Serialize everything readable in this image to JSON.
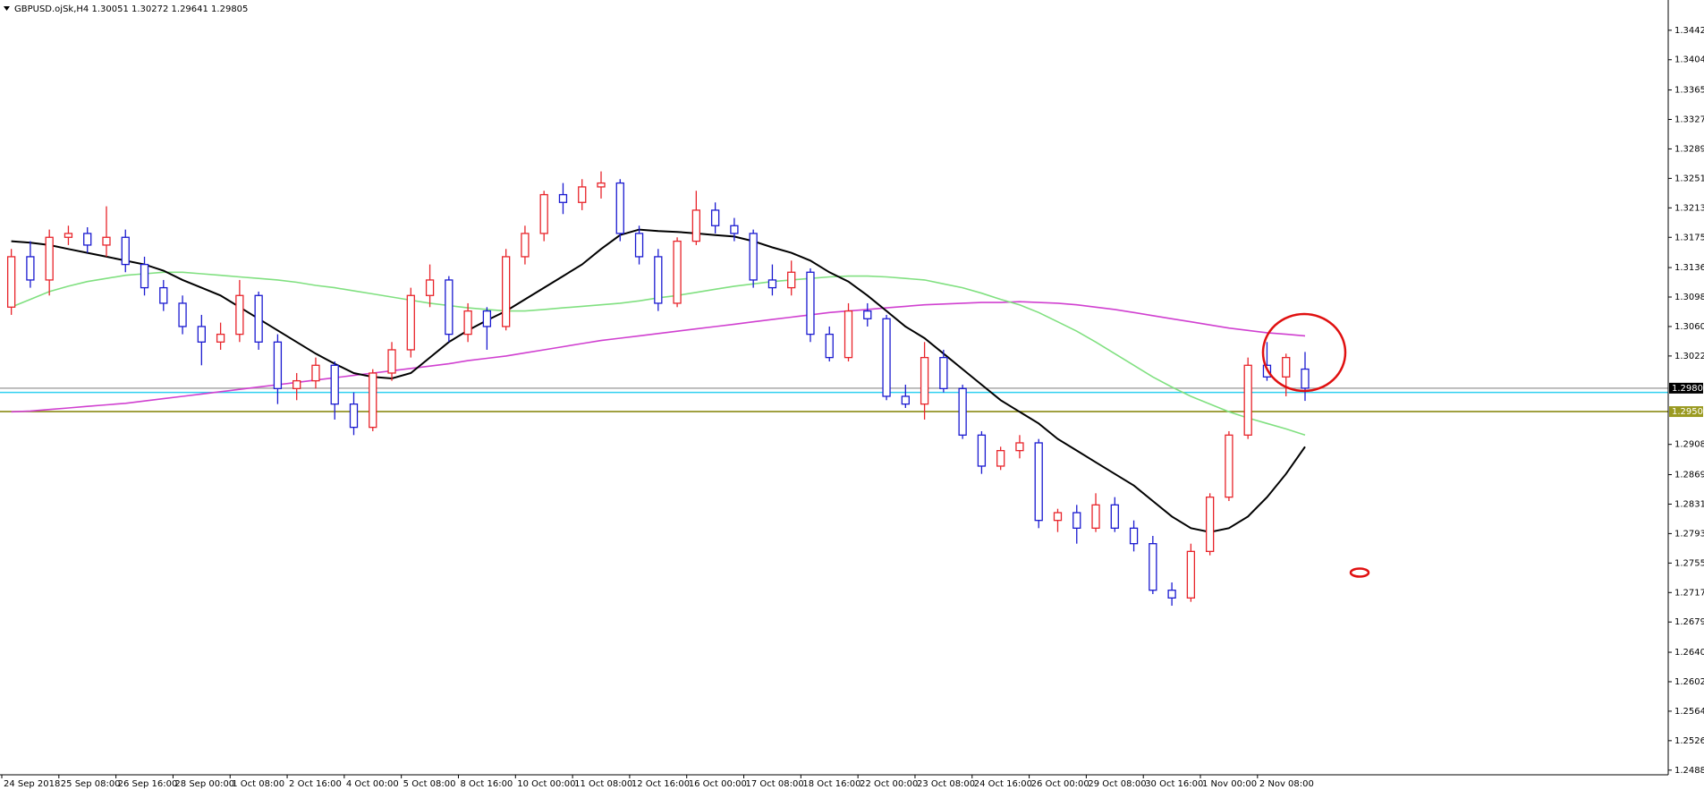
{
  "chart_data": {
    "type": "candlestick",
    "title": "GBPUSD.ojSk,H4  1.30051 1.30272 1.29641 1.29805",
    "up_color": "#e8242a",
    "down_color": "#1a1ad0",
    "ylim": [
      1.2482,
      1.3481
    ],
    "yticks": [
      {
        "value": 1.3442,
        "label": "1.34420"
      },
      {
        "value": 1.3404,
        "label": "1.34040"
      },
      {
        "value": 1.3365,
        "label": "1.33650"
      },
      {
        "value": 1.3327,
        "label": "1.33270"
      },
      {
        "value": 1.3289,
        "label": "1.32890"
      },
      {
        "value": 1.3251,
        "label": "1.32510"
      },
      {
        "value": 1.3213,
        "label": "1.32130"
      },
      {
        "value": 1.3175,
        "label": "1.31750"
      },
      {
        "value": 1.3136,
        "label": "1.31360"
      },
      {
        "value": 1.3098,
        "label": "1.30980"
      },
      {
        "value": 1.306,
        "label": "1.30600"
      },
      {
        "value": 1.3022,
        "label": "1.30220"
      },
      {
        "value": 1.2908,
        "label": "1.29080"
      },
      {
        "value": 1.2869,
        "label": "1.28690"
      },
      {
        "value": 1.2831,
        "label": "1.28310"
      },
      {
        "value": 1.2793,
        "label": "1.27930"
      },
      {
        "value": 1.2755,
        "label": "1.27550"
      },
      {
        "value": 1.2717,
        "label": "1.27170"
      },
      {
        "value": 1.2679,
        "label": "1.26790"
      },
      {
        "value": 1.264,
        "label": "1.26400"
      },
      {
        "value": 1.2602,
        "label": "1.26020"
      },
      {
        "value": 1.2564,
        "label": "1.25640"
      },
      {
        "value": 1.2526,
        "label": "1.25260"
      },
      {
        "value": 1.2488,
        "label": "1.24880"
      }
    ],
    "hlines": [
      {
        "value": 1.29805,
        "color": "#a8a8a8",
        "label_bg": "#000000"
      },
      {
        "value": 1.2975,
        "color": "#30d0f0"
      },
      {
        "value": 1.29503,
        "color": "#808000",
        "label_bg": "#9a9a20"
      }
    ],
    "categories": [
      "24 Sep 2018",
      null,
      null,
      "25 Sep 08:00",
      null,
      null,
      "26 Sep 16:00",
      null,
      null,
      "28 Sep 00:00",
      null,
      null,
      "1 Oct 08:00",
      null,
      null,
      "2 Oct 16:00",
      null,
      null,
      "4 Oct 00:00",
      null,
      null,
      "5 Oct 08:00",
      null,
      null,
      "8 Oct 16:00",
      null,
      null,
      "10 Oct 00:00",
      null,
      null,
      "11 Oct 08:00",
      null,
      null,
      "12 Oct 16:00",
      null,
      null,
      "16 Oct 00:00",
      null,
      null,
      "17 Oct 08:00",
      null,
      null,
      "18 Oct 16:00",
      null,
      null,
      "22 Oct 00:00",
      null,
      null,
      "23 Oct 08:00",
      null,
      null,
      "24 Oct 16:00",
      null,
      null,
      "26 Oct 00:00",
      null,
      null,
      "29 Oct 08:00",
      null,
      null,
      "30 Oct 16:00",
      null,
      null,
      "1 Nov 00:00",
      null,
      null,
      "2 Nov 08:00",
      null,
      null
    ],
    "ohlc": [
      [
        1.3085,
        1.316,
        1.3075,
        1.315
      ],
      [
        1.315,
        1.317,
        1.311,
        1.312
      ],
      [
        1.312,
        1.3185,
        1.31,
        1.3175
      ],
      [
        1.3175,
        1.319,
        1.3165,
        1.318
      ],
      [
        1.318,
        1.3188,
        1.3155,
        1.3165
      ],
      [
        1.3165,
        1.3215,
        1.315,
        1.3175
      ],
      [
        1.3175,
        1.3185,
        1.313,
        1.314
      ],
      [
        1.314,
        1.315,
        1.31,
        1.311
      ],
      [
        1.311,
        1.312,
        1.308,
        1.309
      ],
      [
        1.309,
        1.31,
        1.305,
        1.306
      ],
      [
        1.306,
        1.3075,
        1.301,
        1.304
      ],
      [
        1.304,
        1.3065,
        1.303,
        1.305
      ],
      [
        1.305,
        1.312,
        1.304,
        1.31
      ],
      [
        1.31,
        1.3105,
        1.303,
        1.304
      ],
      [
        1.304,
        1.305,
        1.296,
        1.298
      ],
      [
        1.298,
        1.3,
        1.2965,
        1.299
      ],
      [
        1.299,
        1.302,
        1.298,
        1.301
      ],
      [
        1.301,
        1.3015,
        1.294,
        1.296
      ],
      [
        1.296,
        1.2975,
        1.292,
        1.293
      ],
      [
        1.293,
        1.3005,
        1.2925,
        1.3
      ],
      [
        1.3,
        1.304,
        1.299,
        1.303
      ],
      [
        1.303,
        1.311,
        1.302,
        1.31
      ],
      [
        1.31,
        1.314,
        1.3085,
        1.312
      ],
      [
        1.312,
        1.3125,
        1.304,
        1.305
      ],
      [
        1.305,
        1.309,
        1.304,
        1.308
      ],
      [
        1.308,
        1.3085,
        1.303,
        1.306
      ],
      [
        1.306,
        1.316,
        1.3055,
        1.315
      ],
      [
        1.315,
        1.319,
        1.314,
        1.318
      ],
      [
        1.318,
        1.3235,
        1.317,
        1.323
      ],
      [
        1.323,
        1.3245,
        1.3205,
        1.322
      ],
      [
        1.322,
        1.325,
        1.321,
        1.324
      ],
      [
        1.324,
        1.326,
        1.3225,
        1.3245
      ],
      [
        1.3245,
        1.325,
        1.317,
        1.318
      ],
      [
        1.318,
        1.319,
        1.314,
        1.315
      ],
      [
        1.315,
        1.316,
        1.308,
        1.309
      ],
      [
        1.309,
        1.3175,
        1.3085,
        1.317
      ],
      [
        1.317,
        1.3235,
        1.3165,
        1.321
      ],
      [
        1.321,
        1.322,
        1.318,
        1.319
      ],
      [
        1.319,
        1.32,
        1.317,
        1.318
      ],
      [
        1.318,
        1.3185,
        1.311,
        1.312
      ],
      [
        1.312,
        1.314,
        1.31,
        1.311
      ],
      [
        1.311,
        1.3145,
        1.31,
        1.313
      ],
      [
        1.313,
        1.3135,
        1.304,
        1.305
      ],
      [
        1.305,
        1.306,
        1.3015,
        1.302
      ],
      [
        1.302,
        1.309,
        1.3015,
        1.308
      ],
      [
        1.308,
        1.309,
        1.306,
        1.307
      ],
      [
        1.307,
        1.3075,
        1.2965,
        1.297
      ],
      [
        1.297,
        1.2985,
        1.2955,
        1.296
      ],
      [
        1.296,
        1.304,
        1.294,
        1.302
      ],
      [
        1.302,
        1.303,
        1.2975,
        1.298
      ],
      [
        1.298,
        1.2985,
        1.2915,
        1.292
      ],
      [
        1.292,
        1.2925,
        1.287,
        1.288
      ],
      [
        1.288,
        1.2905,
        1.2875,
        1.29
      ],
      [
        1.29,
        1.292,
        1.289,
        1.291
      ],
      [
        1.291,
        1.2915,
        1.28,
        1.281
      ],
      [
        1.281,
        1.2825,
        1.2795,
        1.282
      ],
      [
        1.282,
        1.283,
        1.278,
        1.28
      ],
      [
        1.28,
        1.2845,
        1.2795,
        1.283
      ],
      [
        1.283,
        1.284,
        1.2795,
        1.28
      ],
      [
        1.28,
        1.281,
        1.277,
        1.278
      ],
      [
        1.278,
        1.279,
        1.2715,
        1.272
      ],
      [
        1.272,
        1.273,
        1.27,
        1.271
      ],
      [
        1.271,
        1.278,
        1.2705,
        1.277
      ],
      [
        1.277,
        1.2845,
        1.2765,
        1.284
      ],
      [
        1.284,
        1.2925,
        1.2835,
        1.292
      ],
      [
        1.292,
        1.302,
        1.2915,
        1.301
      ],
      [
        1.301,
        1.304,
        1.299,
        1.2995
      ],
      [
        1.2995,
        1.3025,
        1.297,
        1.302
      ],
      [
        1.30051,
        1.30272,
        1.29641,
        1.29805
      ]
    ],
    "lines": [
      {
        "color": "#d040d0",
        "values": [
          1.295,
          1.2951,
          1.2953,
          1.2955,
          1.2957,
          1.2959,
          1.2961,
          1.2964,
          1.2967,
          1.297,
          1.2973,
          1.2976,
          1.2979,
          1.2982,
          1.2985,
          1.2988,
          1.2991,
          1.2994,
          1.2997,
          1.3,
          1.3003,
          1.3006,
          1.3009,
          1.3012,
          1.3016,
          1.3019,
          1.3022,
          1.3026,
          1.303,
          1.3034,
          1.3038,
          1.3042,
          1.3045,
          1.3048,
          1.3051,
          1.3054,
          1.3057,
          1.306,
          1.3063,
          1.3066,
          1.3069,
          1.3072,
          1.3075,
          1.3078,
          1.308,
          1.3082,
          1.3084,
          1.3086,
          1.3088,
          1.3089,
          1.309,
          1.3091,
          1.3091,
          1.3092,
          1.3091,
          1.309,
          1.3088,
          1.3085,
          1.3082,
          1.3078,
          1.3074,
          1.307,
          1.3066,
          1.3062,
          1.3058,
          1.3055,
          1.3052,
          1.305,
          1.3048
        ]
      },
      {
        "color": "#80e080",
        "values": [
          1.3085,
          1.3095,
          1.3105,
          1.3112,
          1.3118,
          1.3122,
          1.3126,
          1.3128,
          1.313,
          1.313,
          1.3128,
          1.3126,
          1.3124,
          1.3122,
          1.312,
          1.3117,
          1.3113,
          1.311,
          1.3106,
          1.3102,
          1.3098,
          1.3094,
          1.309,
          1.3087,
          1.3084,
          1.3082,
          1.308,
          1.308,
          1.3082,
          1.3084,
          1.3086,
          1.3088,
          1.309,
          1.3093,
          1.3097,
          1.31,
          1.3104,
          1.3108,
          1.3112,
          1.3115,
          1.3118,
          1.312,
          1.3122,
          1.3124,
          1.3125,
          1.3125,
          1.3124,
          1.3122,
          1.312,
          1.3115,
          1.311,
          1.3103,
          1.3095,
          1.3088,
          1.3078,
          1.3066,
          1.3054,
          1.304,
          1.3025,
          1.301,
          1.2995,
          1.2982,
          1.297,
          1.296,
          1.295,
          1.2942,
          1.2935,
          1.2928,
          1.292
        ]
      },
      {
        "color": "#000000",
        "values": [
          1.317,
          1.3168,
          1.3165,
          1.316,
          1.3155,
          1.315,
          1.3145,
          1.314,
          1.3132,
          1.312,
          1.311,
          1.31,
          1.3085,
          1.307,
          1.3055,
          1.304,
          1.3025,
          1.3012,
          1.3,
          1.2995,
          1.2993,
          1.3,
          1.302,
          1.304,
          1.3055,
          1.3068,
          1.308,
          1.3095,
          1.311,
          1.3125,
          1.314,
          1.316,
          1.3178,
          1.3185,
          1.3183,
          1.3182,
          1.318,
          1.3178,
          1.3176,
          1.317,
          1.3162,
          1.3155,
          1.3145,
          1.313,
          1.3118,
          1.31,
          1.308,
          1.306,
          1.3045,
          1.3025,
          1.3005,
          1.2985,
          1.2965,
          1.295,
          1.2935,
          1.2915,
          1.29,
          1.2885,
          1.287,
          1.2855,
          1.2835,
          1.2815,
          1.28,
          1.2795,
          1.28,
          1.2815,
          1.284,
          1.287,
          1.2905
        ]
      }
    ]
  }
}
